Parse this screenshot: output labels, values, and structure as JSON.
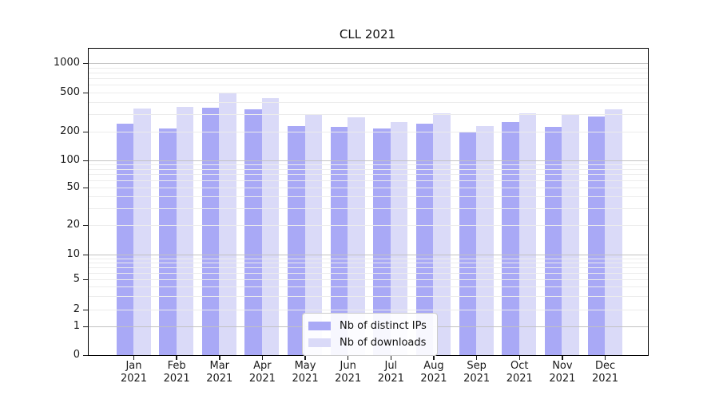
{
  "chart_data": {
    "type": "bar",
    "title": "CLL 2021",
    "x_months": [
      "Jan",
      "Feb",
      "Mar",
      "Apr",
      "May",
      "Jun",
      "Jul",
      "Aug",
      "Sep",
      "Oct",
      "Nov",
      "Dec"
    ],
    "x_year": "2021",
    "series": [
      {
        "name": "Nb of distinct IPs",
        "color": "#a9a9f6",
        "values": [
          240,
          215,
          350,
          340,
          230,
          225,
          215,
          240,
          200,
          250,
          225,
          285
        ]
      },
      {
        "name": "Nb of downloads",
        "color": "#dadaf8",
        "values": [
          345,
          355,
          490,
          440,
          295,
          280,
          250,
          310,
          230,
          305,
          300,
          340
        ]
      }
    ],
    "yticks": [
      0,
      1,
      2,
      5,
      10,
      20,
      50,
      100,
      200,
      500,
      1000
    ],
    "scale": "symlog",
    "ylim": [
      0,
      1400
    ],
    "grid": {
      "major_lines": [
        1,
        10,
        100,
        1000
      ],
      "minor_multiples": [
        2,
        3,
        4,
        5,
        6,
        7,
        8,
        9
      ],
      "minor_decades": [
        1,
        10,
        100
      ],
      "major_color": "#c2c2c2",
      "minor_color": "#ececec"
    },
    "legend_position": "lower center"
  }
}
